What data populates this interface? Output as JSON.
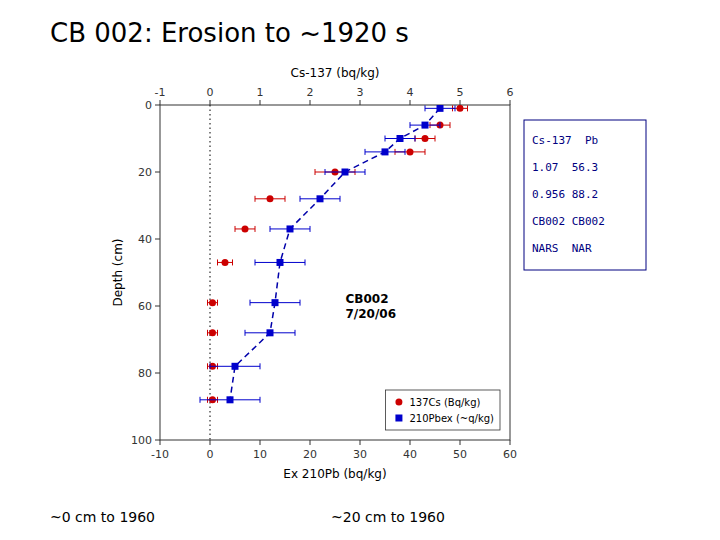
{
  "chart_data": {
    "type": "scatter",
    "title": "CB 002:  Erosion to ~1920 s",
    "subtitle": [
      "~0 cm to 1960",
      "~20 cm to 1960"
    ],
    "xlabel": "Ex 210Pb (bq/kg)",
    "x2label": "Cs-137 (bq/kg)",
    "ylabel": "Depth (cm)",
    "annotation": "CB002\n7/20/06",
    "table_lines": [
      "Cs-137  Pb",
      "1.07  56.3",
      "0.956 88.2",
      "CB002 CB002",
      "NARS  NAR"
    ],
    "xlim": [
      -10,
      60
    ],
    "xticks": [
      -10,
      0,
      10,
      20,
      30,
      40,
      50,
      60
    ],
    "x2lim": [
      -1,
      6
    ],
    "x2ticks": [
      -1,
      0,
      1,
      2,
      3,
      4,
      5,
      6
    ],
    "ylim": [
      100,
      0
    ],
    "yticks": [
      0,
      20,
      40,
      60,
      80,
      100
    ],
    "vline": {
      "value": 0,
      "line_style": "dotted"
    },
    "grid": false,
    "legend": "lower right",
    "series": [
      {
        "name": "137Cs (Bq/kg)",
        "color": "#cc0000",
        "marker": "circle",
        "axis": "x2",
        "x": [
          5.0,
          4.6,
          4.3,
          4.0,
          2.5,
          1.2,
          0.7,
          0.3,
          0.05,
          0.05,
          0.05,
          0.05
        ],
        "y": [
          1,
          6,
          10,
          14,
          20,
          28,
          37,
          47,
          59,
          68,
          78,
          88
        ],
        "xerr": [
          0.15,
          0.2,
          0.2,
          0.3,
          0.4,
          0.3,
          0.2,
          0.15,
          0.1,
          0.1,
          0.1,
          0.1
        ]
      },
      {
        "name": "210Pbex (~q/kg)",
        "color": "#0000cc",
        "marker": "square",
        "line_style": "dashed",
        "line_color": "#0000aa",
        "x": [
          46,
          43,
          38,
          35,
          27,
          22,
          16,
          14,
          13,
          12,
          5,
          4
        ],
        "y": [
          1,
          6,
          10,
          14,
          20,
          28,
          37,
          47,
          59,
          68,
          78,
          88
        ],
        "xerr": [
          3,
          3,
          3,
          4,
          4,
          4,
          4,
          5,
          5,
          5,
          5,
          6
        ]
      }
    ]
  }
}
